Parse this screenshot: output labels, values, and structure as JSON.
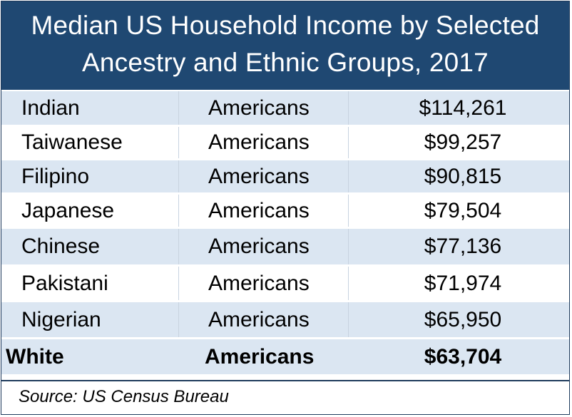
{
  "title": {
    "line1": "Median US Household Income by Selected",
    "line2": "Ancestry and Ethnic Groups, 2017"
  },
  "rows": [
    {
      "group": "Indian",
      "label": "Americans",
      "income": "$114,261"
    },
    {
      "group": "Taiwanese",
      "label": "Americans",
      "income": "$99,257"
    },
    {
      "group": "Filipino",
      "label": "Americans",
      "income": "$90,815"
    },
    {
      "group": "Japanese",
      "label": "Americans",
      "income": "$79,504"
    },
    {
      "group": "Chinese",
      "label": "Americans",
      "income": "$77,136"
    },
    {
      "group": "Pakistani",
      "label": "Americans",
      "income": "$71,974"
    },
    {
      "group": "Nigerian",
      "label": "Americans",
      "income": "$65,950"
    },
    {
      "group": "White",
      "label": "Americans",
      "income": "$63,704"
    }
  ],
  "source": "Source: US Census Bureau",
  "colors": {
    "header_bg": "#1f4872",
    "stripe": "#dbe6f2",
    "border": "#1e3b5c"
  }
}
